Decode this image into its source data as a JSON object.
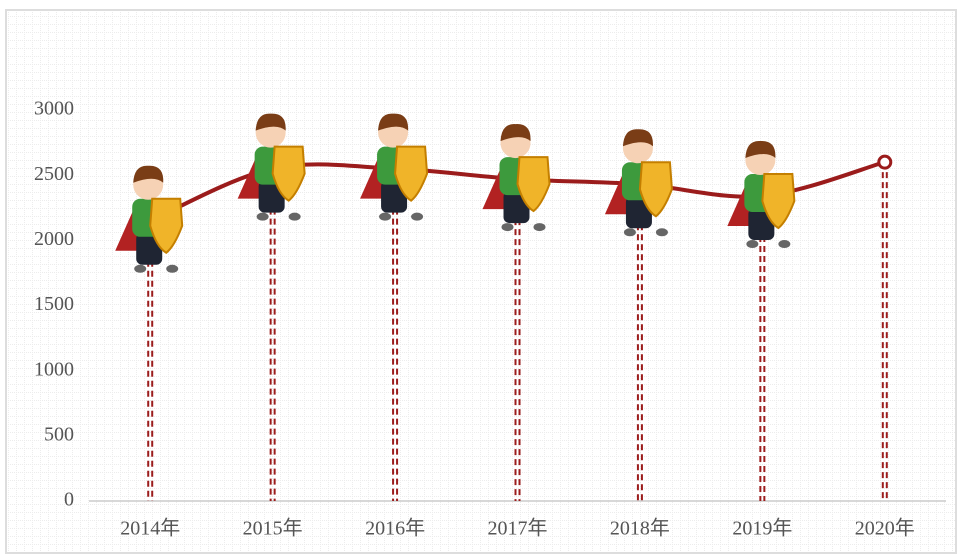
{
  "chart_data": {
    "type": "line",
    "categories": [
      "2014年",
      "2015年",
      "2016年",
      "2017年",
      "2018年",
      "2019年",
      "2020年"
    ],
    "values": [
      2150,
      2550,
      2550,
      2470,
      2430,
      2340,
      2600
    ],
    "color": "#9b1c1c",
    "ylim": [
      0,
      3000
    ],
    "yticks": [
      0,
      500,
      1000,
      1500,
      2000,
      2500,
      3000
    ]
  }
}
